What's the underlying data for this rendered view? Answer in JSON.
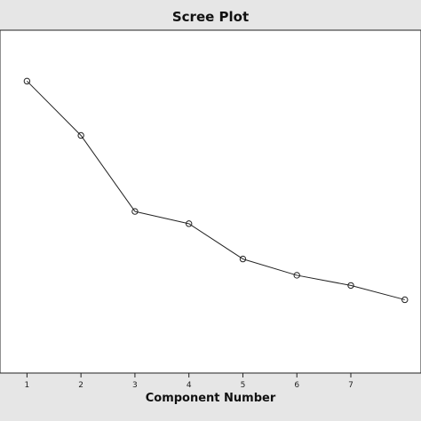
{
  "chart_data": {
    "type": "line",
    "title": "Scree Plot",
    "xlabel": "Component Number",
    "ylabel": "",
    "x": [
      1,
      2,
      3,
      4,
      5,
      6,
      7,
      8
    ],
    "values": [
      4.3,
      3.5,
      2.38,
      2.2,
      1.68,
      1.44,
      1.29,
      1.08
    ],
    "xlim": [
      0.5,
      8.3
    ],
    "ylim": [
      0,
      5.05
    ],
    "x_ticks": [
      "1",
      "2",
      "3",
      "4",
      "5",
      "6",
      "7"
    ],
    "grid": false,
    "legend": "none",
    "colors": {
      "plot_background": "#ffffff",
      "frame_background": "#e6e6e6",
      "line": "#222222",
      "marker": "#222222"
    }
  }
}
